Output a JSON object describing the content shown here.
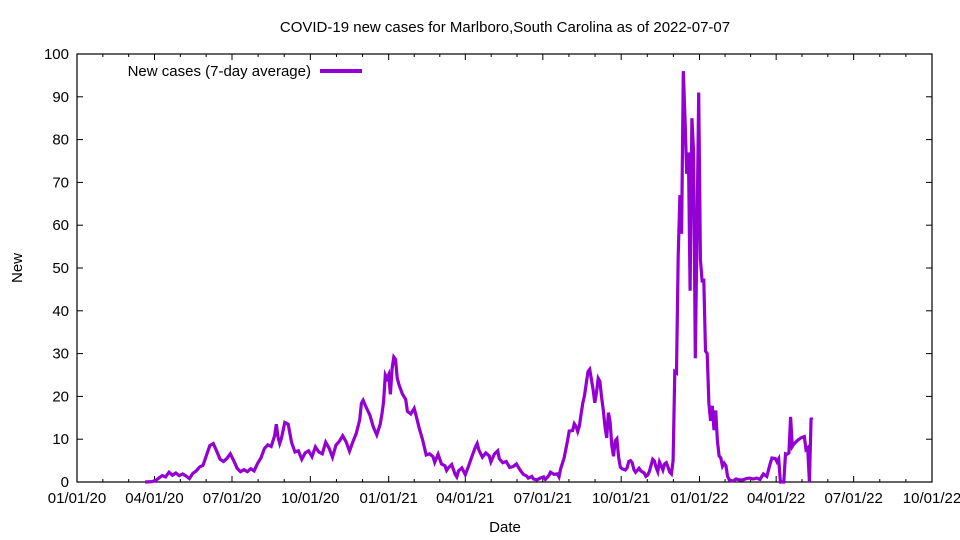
{
  "chart_data": {
    "type": "line",
    "title": "COVID-19 new cases for Marlboro,South Carolina as of 2022-07-07",
    "xlabel": "Date",
    "ylabel": "New",
    "x_start_date": "2020-01-01",
    "xlim_days": [
      0,
      1004
    ],
    "ylim": [
      0,
      100
    ],
    "y_ticks": [
      0,
      10,
      20,
      30,
      40,
      50,
      60,
      70,
      80,
      90,
      100
    ],
    "x_ticks": [
      {
        "label": "01/01/20",
        "day": 0
      },
      {
        "label": "04/01/20",
        "day": 91
      },
      {
        "label": "07/01/20",
        "day": 182
      },
      {
        "label": "10/01/20",
        "day": 274
      },
      {
        "label": "01/01/21",
        "day": 366
      },
      {
        "label": "04/01/21",
        "day": 456
      },
      {
        "label": "07/01/21",
        "day": 547
      },
      {
        "label": "10/01/21",
        "day": 639
      },
      {
        "label": "01/01/22",
        "day": 731
      },
      {
        "label": "04/01/22",
        "day": 821
      },
      {
        "label": "07/01/22",
        "day": 912
      },
      {
        "label": "10/01/22",
        "day": 1004
      }
    ],
    "grid": false,
    "legend_position": "top-left",
    "series": [
      {
        "name": "New cases (7-day average)",
        "color": "#9400d3",
        "points": [
          [
            80,
            0
          ],
          [
            88,
            0.1
          ],
          [
            92,
            0.3
          ],
          [
            96,
            0.9
          ],
          [
            100,
            1.5
          ],
          [
            104,
            1.2
          ],
          [
            108,
            2.3
          ],
          [
            112,
            1.6
          ],
          [
            116,
            2.1
          ],
          [
            120,
            1.5
          ],
          [
            124,
            1.9
          ],
          [
            128,
            1.4
          ],
          [
            132,
            0.8
          ],
          [
            136,
            2.0
          ],
          [
            140,
            2.6
          ],
          [
            144,
            3.5
          ],
          [
            148,
            3.9
          ],
          [
            152,
            6.2
          ],
          [
            156,
            8.5
          ],
          [
            160,
            9.0
          ],
          [
            164,
            7.2
          ],
          [
            168,
            5.3
          ],
          [
            172,
            4.8
          ],
          [
            176,
            5.5
          ],
          [
            180,
            6.6
          ],
          [
            184,
            5.0
          ],
          [
            188,
            3.2
          ],
          [
            192,
            2.4
          ],
          [
            196,
            2.9
          ],
          [
            200,
            2.4
          ],
          [
            204,
            3.1
          ],
          [
            208,
            2.6
          ],
          [
            212,
            4.3
          ],
          [
            216,
            5.6
          ],
          [
            220,
            7.8
          ],
          [
            224,
            8.7
          ],
          [
            228,
            8.3
          ],
          [
            232,
            10.8
          ],
          [
            234,
            13.5
          ],
          [
            236,
            10.5
          ],
          [
            238,
            9.0
          ],
          [
            240,
            10.2
          ],
          [
            244,
            13.9
          ],
          [
            248,
            13.5
          ],
          [
            252,
            9.2
          ],
          [
            256,
            7.0
          ],
          [
            260,
            7.3
          ],
          [
            264,
            5.3
          ],
          [
            268,
            6.8
          ],
          [
            272,
            7.3
          ],
          [
            276,
            5.9
          ],
          [
            280,
            8.2
          ],
          [
            284,
            7.0
          ],
          [
            288,
            6.6
          ],
          [
            292,
            9.3
          ],
          [
            296,
            7.9
          ],
          [
            300,
            5.8
          ],
          [
            304,
            8.6
          ],
          [
            308,
            9.5
          ],
          [
            312,
            10.8
          ],
          [
            316,
            9.4
          ],
          [
            320,
            7.2
          ],
          [
            324,
            9.4
          ],
          [
            328,
            11.4
          ],
          [
            332,
            14.5
          ],
          [
            334,
            18.4
          ],
          [
            336,
            19.1
          ],
          [
            340,
            17.3
          ],
          [
            344,
            15.6
          ],
          [
            348,
            12.8
          ],
          [
            352,
            11.0
          ],
          [
            356,
            13.5
          ],
          [
            358,
            15.8
          ],
          [
            360,
            18.8
          ],
          [
            362,
            25.0
          ],
          [
            364,
            24.2
          ],
          [
            366,
            25.1
          ],
          [
            368,
            20.5
          ],
          [
            370,
            26.5
          ],
          [
            372,
            29.2
          ],
          [
            374,
            28.7
          ],
          [
            376,
            24.3
          ],
          [
            378,
            22.8
          ],
          [
            382,
            20.6
          ],
          [
            386,
            19.3
          ],
          [
            388,
            16.5
          ],
          [
            392,
            15.9
          ],
          [
            396,
            17.2
          ],
          [
            398,
            15.7
          ],
          [
            402,
            12.5
          ],
          [
            406,
            9.8
          ],
          [
            410,
            6.3
          ],
          [
            414,
            6.6
          ],
          [
            418,
            5.9
          ],
          [
            420,
            4.6
          ],
          [
            424,
            6.5
          ],
          [
            428,
            4.2
          ],
          [
            432,
            3.8
          ],
          [
            434,
            2.7
          ],
          [
            436,
            3.3
          ],
          [
            440,
            4.1
          ],
          [
            444,
            1.8
          ],
          [
            446,
            1.2
          ],
          [
            448,
            2.6
          ],
          [
            452,
            3.3
          ],
          [
            456,
            1.7
          ],
          [
            460,
            3.8
          ],
          [
            464,
            6.1
          ],
          [
            468,
            8.2
          ],
          [
            470,
            9.0
          ],
          [
            472,
            7.4
          ],
          [
            476,
            5.8
          ],
          [
            480,
            6.8
          ],
          [
            484,
            6.1
          ],
          [
            486,
            4.7
          ],
          [
            490,
            6.5
          ],
          [
            494,
            7.3
          ],
          [
            496,
            5.4
          ],
          [
            500,
            4.5
          ],
          [
            504,
            4.8
          ],
          [
            508,
            3.4
          ],
          [
            512,
            3.6
          ],
          [
            516,
            4.2
          ],
          [
            520,
            2.9
          ],
          [
            524,
            1.8
          ],
          [
            528,
            1.4
          ],
          [
            530,
            0.9
          ],
          [
            534,
            1.3
          ],
          [
            536,
            0.7
          ],
          [
            540,
            0.5
          ],
          [
            544,
            0.9
          ],
          [
            548,
            1.2
          ],
          [
            550,
            0.6
          ],
          [
            554,
            1.5
          ],
          [
            556,
            2.3
          ],
          [
            560,
            1.8
          ],
          [
            564,
            1.9
          ],
          [
            566,
            1.2
          ],
          [
            568,
            3.1
          ],
          [
            572,
            5.6
          ],
          [
            576,
            9.6
          ],
          [
            578,
            11.9
          ],
          [
            582,
            12.0
          ],
          [
            584,
            13.6
          ],
          [
            586,
            13.0
          ],
          [
            588,
            11.8
          ],
          [
            590,
            13.1
          ],
          [
            592,
            15.9
          ],
          [
            594,
            18.4
          ],
          [
            596,
            20.2
          ],
          [
            598,
            23.1
          ],
          [
            600,
            25.8
          ],
          [
            602,
            26.3
          ],
          [
            604,
            24.0
          ],
          [
            606,
            21.6
          ],
          [
            608,
            18.5
          ],
          [
            610,
            20.9
          ],
          [
            612,
            24.2
          ],
          [
            614,
            23.5
          ],
          [
            616,
            19.8
          ],
          [
            618,
            16.8
          ],
          [
            620,
            12.9
          ],
          [
            622,
            10.3
          ],
          [
            624,
            16.2
          ],
          [
            626,
            14.1
          ],
          [
            628,
            8.5
          ],
          [
            630,
            6.0
          ],
          [
            632,
            9.6
          ],
          [
            634,
            10.1
          ],
          [
            636,
            5.8
          ],
          [
            638,
            3.5
          ],
          [
            640,
            3.1
          ],
          [
            644,
            2.8
          ],
          [
            646,
            3.3
          ],
          [
            648,
            4.8
          ],
          [
            650,
            5.0
          ],
          [
            652,
            4.5
          ],
          [
            654,
            2.9
          ],
          [
            656,
            2.3
          ],
          [
            660,
            3.2
          ],
          [
            662,
            2.6
          ],
          [
            666,
            2.1
          ],
          [
            668,
            1.3
          ],
          [
            670,
            1.6
          ],
          [
            672,
            2.4
          ],
          [
            676,
            5.3
          ],
          [
            678,
            4.9
          ],
          [
            680,
            3.4
          ],
          [
            682,
            2.4
          ],
          [
            684,
            4.7
          ],
          [
            686,
            3.8
          ],
          [
            688,
            2.8
          ],
          [
            690,
            4.2
          ],
          [
            692,
            4.5
          ],
          [
            694,
            3.5
          ],
          [
            696,
            2.3
          ],
          [
            698,
            1.9
          ],
          [
            700,
            5.0
          ],
          [
            702,
            25.8
          ],
          [
            704,
            25.5
          ],
          [
            706,
            52.8
          ],
          [
            708,
            67.0
          ],
          [
            710,
            58.0
          ],
          [
            712,
            96.0
          ],
          [
            714,
            85.0
          ],
          [
            716,
            72.0
          ],
          [
            718,
            77.0
          ],
          [
            720,
            44.7
          ],
          [
            722,
            85.0
          ],
          [
            724,
            77.0
          ],
          [
            726,
            28.9
          ],
          [
            728,
            58.0
          ],
          [
            730,
            91.0
          ],
          [
            732,
            52.0
          ],
          [
            734,
            47.0
          ],
          [
            736,
            47.1
          ],
          [
            738,
            30.6
          ],
          [
            740,
            30.0
          ],
          [
            742,
            18.3
          ],
          [
            744,
            14.3
          ],
          [
            746,
            17.8
          ],
          [
            748,
            12.1
          ],
          [
            750,
            16.7
          ],
          [
            752,
            9.6
          ],
          [
            754,
            6.1
          ],
          [
            756,
            5.6
          ],
          [
            758,
            3.7
          ],
          [
            760,
            4.4
          ],
          [
            762,
            3.8
          ],
          [
            764,
            1.3
          ],
          [
            766,
            0.5
          ],
          [
            770,
            0.2
          ],
          [
            774,
            0.7
          ],
          [
            778,
            0.5
          ],
          [
            782,
            0.5
          ],
          [
            786,
            0.8
          ],
          [
            790,
            0.9
          ],
          [
            794,
            0.7
          ],
          [
            798,
            0.9
          ],
          [
            802,
            0.6
          ],
          [
            806,
            1.9
          ],
          [
            810,
            1.3
          ],
          [
            814,
            4.3
          ],
          [
            816,
            5.6
          ],
          [
            820,
            5.5
          ],
          [
            822,
            4.7
          ],
          [
            824,
            5.4
          ],
          [
            826,
            0
          ],
          [
            828,
            0
          ],
          [
            830,
            0
          ],
          [
            832,
            6.6
          ],
          [
            834,
            6.5
          ],
          [
            836,
            6.8
          ],
          [
            838,
            15.2
          ],
          [
            840,
            8.3
          ],
          [
            842,
            8.9
          ],
          [
            846,
            9.7
          ],
          [
            850,
            10.3
          ],
          [
            854,
            10.6
          ],
          [
            856,
            7.6
          ],
          [
            858,
            8.0
          ],
          [
            860,
            0
          ],
          [
            862,
            15.0
          ],
          [
            863,
            14.5
          ]
        ]
      }
    ]
  }
}
